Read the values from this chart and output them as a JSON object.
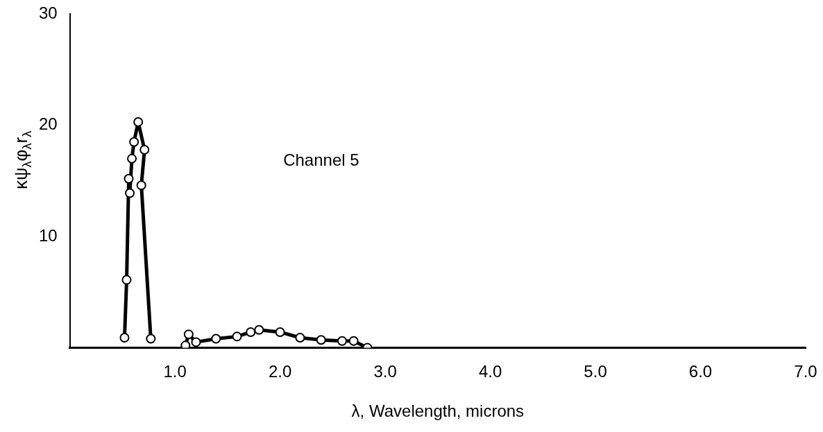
{
  "chart_data": {
    "type": "line",
    "xlabel": "λ, Wavelength, microns",
    "ylabel": "κψ$_{λ}$φ$_{λ}$r$_{λ}$",
    "annotations": [
      "Channel 5"
    ],
    "xlim": [
      0,
      7
    ],
    "xticks": [
      {
        "value": 1,
        "label": "1.0"
      },
      {
        "value": 2,
        "label": "2.0"
      },
      {
        "value": 3,
        "label": "3.0"
      },
      {
        "value": 4,
        "label": "4.0"
      },
      {
        "value": 5,
        "label": "5.0"
      },
      {
        "value": 6,
        "label": "6.0"
      },
      {
        "value": 7,
        "label": "7.0"
      }
    ],
    "ylim": [
      0,
      30
    ],
    "yticks": [
      10,
      20,
      30
    ],
    "grid": false,
    "legend": false,
    "marker": "circle",
    "line_style": "solid",
    "series": [
      {
        "color": "#000000",
        "x": [
          0.52,
          0.54,
          0.56,
          0.57,
          0.59,
          0.61,
          0.65,
          0.71,
          0.68,
          0.77
        ],
        "values": [
          0.9,
          6.1,
          15.2,
          13.9,
          17,
          18.5,
          20.3,
          17.8,
          14.6,
          0.8
        ]
      },
      {
        "color": "#000000",
        "x": [
          1.1,
          1.13,
          1.2,
          1.39,
          1.59,
          1.72,
          1.8,
          2.0,
          2.19,
          2.39,
          2.59,
          2.7,
          2.83
        ],
        "values": [
          0.2,
          1.2,
          0.5,
          0.8,
          1.0,
          1.4,
          1.6,
          1.4,
          0.9,
          0.7,
          0.6,
          0.6,
          0
        ]
      }
    ]
  }
}
